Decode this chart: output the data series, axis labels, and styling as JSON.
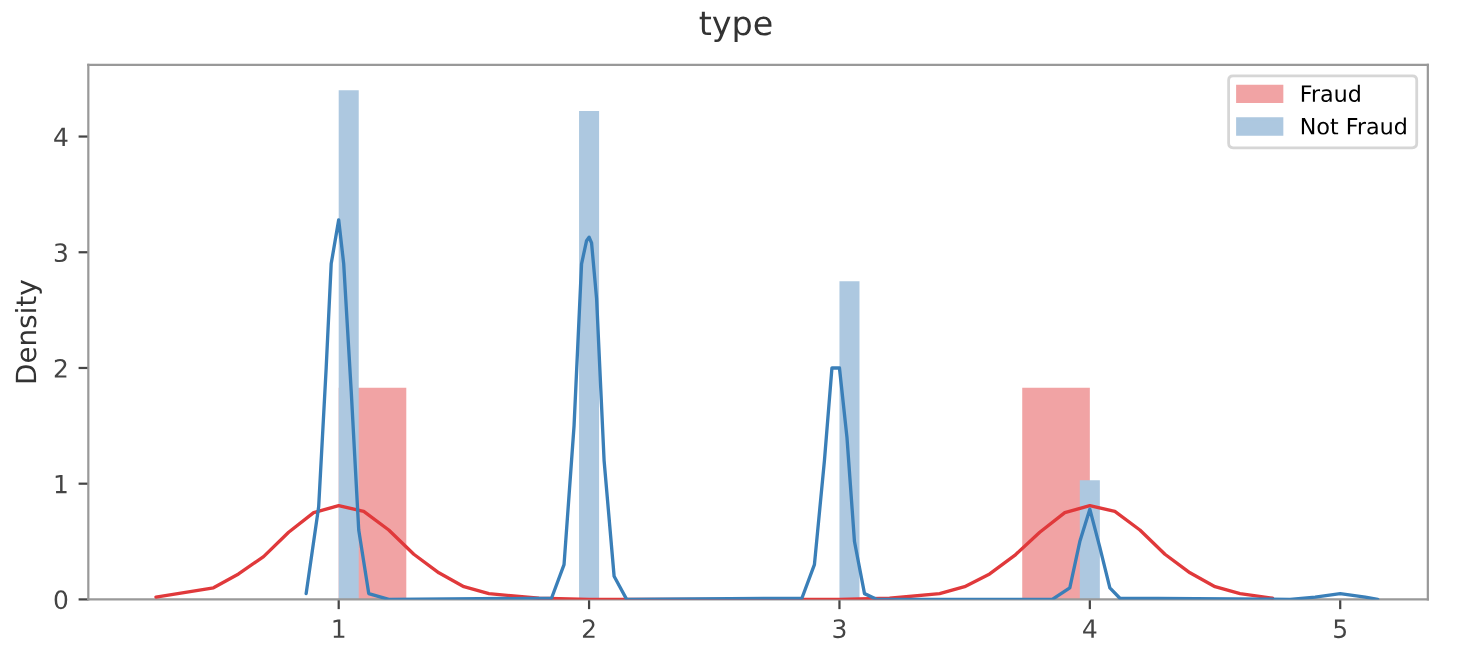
{
  "chart_data": {
    "type": "histogram",
    "title": "type",
    "ylabel": "Density",
    "xlim": [
      0.0,
      5.35
    ],
    "ylim": [
      0,
      4.62
    ],
    "xticks": [
      1,
      2,
      3,
      4,
      5
    ],
    "yticks": [
      0,
      1,
      2,
      3,
      4
    ],
    "grid": false,
    "legend": "top right",
    "series": [
      {
        "name": "Fraud",
        "color": "#f1a3a4",
        "bins": [
          1.0,
          1.27,
          3.73,
          4.0
        ],
        "values": [
          1.83,
          0,
          1.83
        ]
      },
      {
        "name": "Not Fraud",
        "color": "#adc8e0",
        "bins": [
          1.0,
          1.08,
          1.96,
          2.04,
          3.0,
          3.08,
          3.96,
          4.04
        ],
        "values": [
          4.4,
          0,
          4.22,
          0,
          2.75,
          0,
          1.03
        ]
      },
      {
        "type": "line",
        "color": "#e0393b",
        "x": [
          0.27,
          0.5,
          0.6,
          0.7,
          0.8,
          0.9,
          1.0,
          1.1,
          1.2,
          1.3,
          1.4,
          1.5,
          1.6,
          1.8,
          2.0,
          3.0,
          3.2,
          3.4,
          3.5,
          3.6,
          3.7,
          3.8,
          3.9,
          4.0,
          4.1,
          4.2,
          4.3,
          4.4,
          4.5,
          4.6,
          4.73
        ],
        "values": [
          0.02,
          0.1,
          0.22,
          0.37,
          0.58,
          0.75,
          0.81,
          0.76,
          0.6,
          0.39,
          0.23,
          0.11,
          0.05,
          0.01,
          0,
          0,
          0.01,
          0.05,
          0.11,
          0.22,
          0.38,
          0.58,
          0.75,
          0.81,
          0.76,
          0.6,
          0.39,
          0.23,
          0.11,
          0.05,
          0.01
        ]
      },
      {
        "type": "line",
        "color": "#3a7fb8",
        "x": [
          0.87,
          0.92,
          0.95,
          0.97,
          1.0,
          1.02,
          1.05,
          1.08,
          1.12,
          1.2,
          1.85,
          1.9,
          1.94,
          1.97,
          1.99,
          2.0,
          2.01,
          2.03,
          2.06,
          2.1,
          2.15,
          2.85,
          2.9,
          2.94,
          2.97,
          3.0,
          3.03,
          3.06,
          3.1,
          3.15,
          3.85,
          3.92,
          3.96,
          4.0,
          4.04,
          4.08,
          4.12,
          4.8,
          4.9,
          5.0,
          5.1,
          5.15
        ],
        "values": [
          0.05,
          0.8,
          2.0,
          2.9,
          3.28,
          2.9,
          1.8,
          0.6,
          0.05,
          0,
          0.01,
          0.3,
          1.5,
          2.9,
          3.1,
          3.13,
          3.08,
          2.6,
          1.2,
          0.2,
          0,
          0.01,
          0.3,
          1.2,
          2.0,
          2.0,
          1.4,
          0.5,
          0.05,
          0,
          0,
          0.1,
          0.5,
          0.78,
          0.45,
          0.1,
          0.01,
          0,
          0.02,
          0.05,
          0.02,
          0
        ]
      }
    ]
  }
}
